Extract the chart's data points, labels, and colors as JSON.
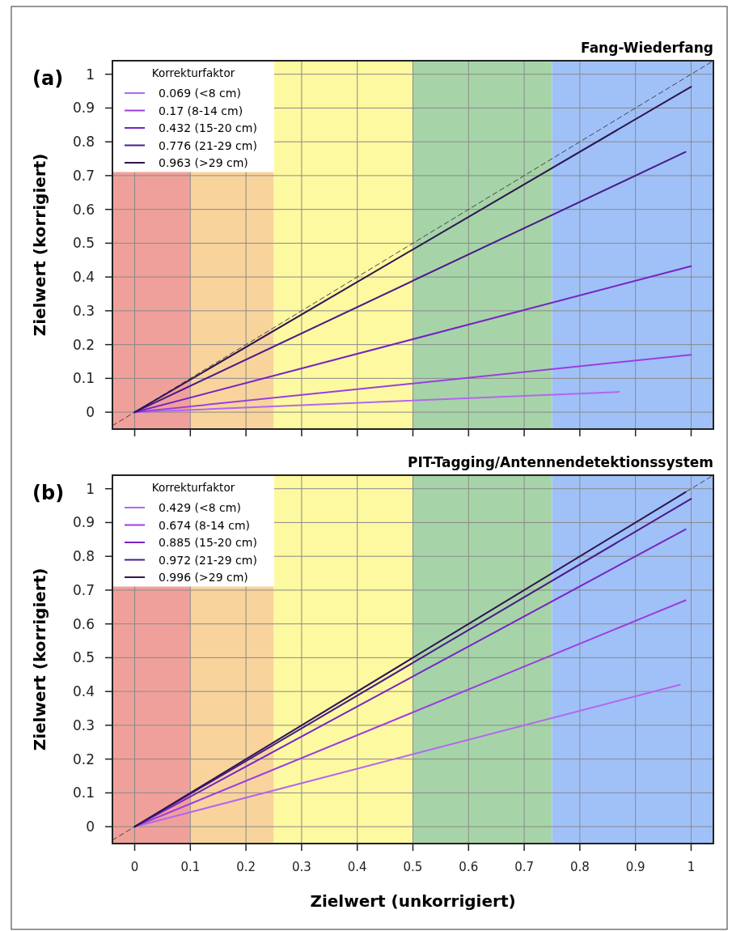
{
  "chart_data": [
    {
      "type": "line",
      "title": "Fang-Wiederfang",
      "ylabel": "Zielwert (korrigiert)",
      "annotations": [
        "(a)"
      ],
      "legend_title": "Korrekturfaktor",
      "legend": "top left",
      "grid": true,
      "tick_labels": "y",
      "xlim": [
        -0.04,
        1.04
      ],
      "ylim": [
        -0.05,
        1.04
      ],
      "xticks": [
        0,
        0.1,
        0.2,
        0.3,
        0.4,
        0.5,
        0.6,
        0.7,
        0.8,
        0.9,
        1
      ],
      "yticks": [
        0,
        0.1,
        0.2,
        0.3,
        0.4,
        0.5,
        0.6,
        0.7,
        0.8,
        0.9,
        1
      ],
      "bands": [
        {
          "axis": "x",
          "from": -0.04,
          "to": 0.1,
          "color": "#f0a09a"
        },
        {
          "axis": "x",
          "from": 0.1,
          "to": 0.25,
          "color": "#f8d49c"
        },
        {
          "axis": "x",
          "from": 0.25,
          "to": 0.5,
          "color": "#fdf9a0"
        },
        {
          "axis": "x",
          "from": 0.5,
          "to": 0.75,
          "color": "#a6d4a8"
        },
        {
          "axis": "x",
          "from": 0.75,
          "to": 1.04,
          "color": "#a0c0f8"
        }
      ],
      "series": [
        {
          "color": "#444444",
          "line_style": "dashed",
          "x": [
            -0.04,
            1.04
          ],
          "values": [
            -0.04,
            1.04
          ]
        },
        {
          "name": "0.069 (<8 cm)",
          "color": "#b366f0",
          "x": [
            0,
            0.87
          ],
          "values": [
            0,
            0.06
          ]
        },
        {
          "name": "0.17 (8-14 cm)",
          "color": "#9a3ee0",
          "x": [
            0,
            1
          ],
          "values": [
            0,
            0.17
          ]
        },
        {
          "name": "0.432 (15-20 cm)",
          "color": "#7624c4",
          "x": [
            0,
            1
          ],
          "values": [
            0,
            0.432
          ]
        },
        {
          "name": "0.776 (21-29 cm)",
          "color": "#4a1a8a",
          "x": [
            0,
            0.99
          ],
          "values": [
            0,
            0.77
          ]
        },
        {
          "name": "0.963 (>29 cm)",
          "color": "#2d1650",
          "x": [
            0,
            1
          ],
          "values": [
            0,
            0.963
          ]
        }
      ]
    },
    {
      "type": "line",
      "title": "PIT-Tagging/Antennendetektionssystem",
      "xlabel": "Zielwert (unkorrigiert)",
      "ylabel": "Zielwert (korrigiert)",
      "annotations": [
        "(b)"
      ],
      "legend_title": "Korrekturfaktor",
      "legend": "top left",
      "grid": true,
      "xlim": [
        -0.04,
        1.04
      ],
      "ylim": [
        -0.05,
        1.04
      ],
      "xticks": [
        0,
        0.1,
        0.2,
        0.3,
        0.4,
        0.5,
        0.6,
        0.7,
        0.8,
        0.9,
        1
      ],
      "yticks": [
        0,
        0.1,
        0.2,
        0.3,
        0.4,
        0.5,
        0.6,
        0.7,
        0.8,
        0.9,
        1
      ],
      "bands": [
        {
          "axis": "x",
          "from": -0.04,
          "to": 0.1,
          "color": "#f0a09a"
        },
        {
          "axis": "x",
          "from": 0.1,
          "to": 0.25,
          "color": "#f8d49c"
        },
        {
          "axis": "x",
          "from": 0.25,
          "to": 0.5,
          "color": "#fdf9a0"
        },
        {
          "axis": "x",
          "from": 0.5,
          "to": 0.75,
          "color": "#a6d4a8"
        },
        {
          "axis": "x",
          "from": 0.75,
          "to": 1.04,
          "color": "#a0c0f8"
        }
      ],
      "series": [
        {
          "color": "#444444",
          "line_style": "dashed",
          "x": [
            -0.04,
            1.04
          ],
          "values": [
            -0.04,
            1.04
          ]
        },
        {
          "name": "0.429 (<8 cm)",
          "color": "#b366f0",
          "x": [
            0,
            0.98
          ],
          "values": [
            0,
            0.42
          ]
        },
        {
          "name": "0.674 (8-14 cm)",
          "color": "#9a3ee0",
          "x": [
            0,
            0.99
          ],
          "values": [
            0,
            0.67
          ]
        },
        {
          "name": "0.885 (15-20 cm)",
          "color": "#7624c4",
          "x": [
            0,
            0.99
          ],
          "values": [
            0,
            0.88
          ]
        },
        {
          "name": "0.972 (21-29 cm)",
          "color": "#4a1a8a",
          "x": [
            0,
            1
          ],
          "values": [
            0,
            0.97
          ]
        },
        {
          "name": "0.996 (>29 cm)",
          "color": "#2d1650",
          "x": [
            0,
            0.99
          ],
          "values": [
            0,
            0.99
          ]
        }
      ]
    }
  ]
}
